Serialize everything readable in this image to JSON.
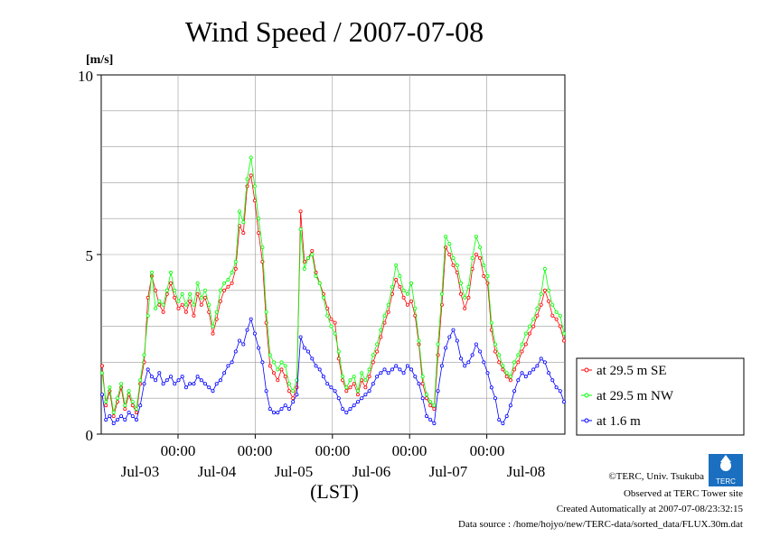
{
  "chart_data": {
    "type": "line",
    "title": "Wind Speed / 2007-07-08",
    "y_unit": "[m/s]",
    "xlabel": "(LST)",
    "ylim": [
      0,
      10
    ],
    "y_ticks": [
      "0",
      "5",
      "10"
    ],
    "x_hour_ticks": [
      "00:00",
      "00:00",
      "00:00",
      "00:00",
      "00:00"
    ],
    "x_day_ticks": [
      "Jul-03",
      "Jul-04",
      "Jul-05",
      "Jul-06",
      "Jul-07",
      "Jul-08"
    ],
    "grid": true,
    "legend_position": "right",
    "x_domain_days": [
      0,
      6
    ],
    "sample_step_days": 0.0833,
    "series": [
      {
        "name": "at 29.5 m SE",
        "color": "#ff0000",
        "values": [
          1.9,
          0.8,
          1.2,
          0.5,
          0.9,
          1.3,
          0.7,
          1.1,
          0.8,
          0.6,
          1.4,
          2.0,
          3.8,
          4.4,
          4.0,
          3.6,
          3.4,
          3.9,
          4.2,
          3.8,
          3.5,
          3.6,
          3.4,
          3.7,
          3.3,
          3.9,
          3.6,
          3.8,
          3.4,
          2.8,
          3.2,
          3.7,
          4.0,
          4.1,
          4.2,
          4.6,
          5.8,
          5.6,
          6.9,
          7.2,
          6.5,
          5.6,
          4.8,
          3.1,
          1.9,
          1.7,
          1.5,
          1.8,
          1.6,
          1.2,
          1.0,
          1.3,
          6.2,
          4.8,
          4.9,
          5.1,
          4.5,
          4.2,
          3.9,
          3.5,
          3.2,
          3.1,
          2.1,
          1.5,
          1.2,
          1.3,
          1.4,
          1.1,
          1.5,
          1.3,
          1.6,
          2.0,
          2.3,
          2.7,
          3.1,
          3.4,
          3.9,
          4.3,
          4.1,
          3.8,
          3.6,
          3.7,
          3.3,
          2.5,
          1.4,
          1.0,
          0.8,
          0.7,
          2.2,
          3.6,
          5.2,
          5.0,
          4.7,
          4.5,
          3.9,
          3.5,
          3.8,
          4.6,
          5.0,
          4.9,
          4.4,
          4.2,
          2.9,
          2.3,
          2.0,
          1.8,
          1.6,
          1.5,
          1.8,
          2.0,
          2.3,
          2.5,
          2.8,
          3.0,
          3.3,
          3.6,
          4.0,
          3.7,
          3.3,
          3.2,
          3.0,
          2.6
        ]
      },
      {
        "name": "at 29.5 m NW",
        "color": "#00ff00",
        "values": [
          1.7,
          0.9,
          1.3,
          0.6,
          1.0,
          1.4,
          0.8,
          1.2,
          0.9,
          0.7,
          1.5,
          2.2,
          3.3,
          4.5,
          3.5,
          3.7,
          3.6,
          4.0,
          4.5,
          4.0,
          3.7,
          3.9,
          3.6,
          3.9,
          3.6,
          4.2,
          3.8,
          4.0,
          3.6,
          3.0,
          3.4,
          4.0,
          4.2,
          4.3,
          4.5,
          4.8,
          6.2,
          5.9,
          7.1,
          7.7,
          6.9,
          6.0,
          5.2,
          3.4,
          2.2,
          2.0,
          1.8,
          2.0,
          1.9,
          1.4,
          1.2,
          1.5,
          5.7,
          4.6,
          4.9,
          5.0,
          4.4,
          4.2,
          3.8,
          3.3,
          3.0,
          2.8,
          2.3,
          1.6,
          1.3,
          1.5,
          1.6,
          1.2,
          1.7,
          1.5,
          1.8,
          2.2,
          2.5,
          2.9,
          3.3,
          3.6,
          4.1,
          4.7,
          4.4,
          4.0,
          3.9,
          4.2,
          3.5,
          2.6,
          1.6,
          1.1,
          0.9,
          0.8,
          2.5,
          3.9,
          5.5,
          5.3,
          4.9,
          4.7,
          4.2,
          3.8,
          4.1,
          4.9,
          5.5,
          5.2,
          4.7,
          4.4,
          3.1,
          2.5,
          2.2,
          1.9,
          1.7,
          1.6,
          2.0,
          2.2,
          2.5,
          2.8,
          3.0,
          3.2,
          3.5,
          3.9,
          4.6,
          4.0,
          3.6,
          3.4,
          3.3,
          2.8
        ]
      },
      {
        "name": "at 1.6 m",
        "color": "#0000ff",
        "values": [
          1.1,
          0.4,
          0.5,
          0.3,
          0.4,
          0.5,
          0.4,
          0.6,
          0.5,
          0.4,
          0.8,
          1.4,
          1.8,
          1.6,
          1.5,
          1.7,
          1.4,
          1.5,
          1.6,
          1.4,
          1.5,
          1.6,
          1.3,
          1.4,
          1.4,
          1.6,
          1.5,
          1.4,
          1.3,
          1.2,
          1.4,
          1.5,
          1.7,
          1.9,
          2.0,
          2.3,
          2.6,
          2.5,
          2.9,
          3.2,
          2.8,
          2.4,
          2.0,
          1.2,
          0.7,
          0.6,
          0.6,
          0.7,
          0.8,
          0.7,
          0.9,
          1.1,
          2.7,
          2.4,
          2.3,
          2.1,
          1.9,
          1.8,
          1.6,
          1.4,
          1.3,
          1.2,
          1.0,
          0.7,
          0.6,
          0.7,
          0.8,
          0.9,
          1.0,
          1.1,
          1.2,
          1.4,
          1.6,
          1.7,
          1.8,
          1.7,
          1.8,
          1.9,
          1.8,
          1.7,
          1.9,
          1.8,
          1.6,
          1.4,
          1.0,
          0.5,
          0.4,
          0.3,
          1.2,
          1.9,
          2.4,
          2.7,
          2.9,
          2.6,
          2.1,
          1.9,
          2.0,
          2.2,
          2.5,
          2.3,
          2.0,
          1.7,
          1.3,
          1.0,
          0.4,
          0.3,
          0.5,
          0.8,
          1.2,
          1.5,
          1.7,
          1.6,
          1.7,
          1.8,
          1.9,
          2.1,
          2.0,
          1.7,
          1.5,
          1.3,
          1.2,
          0.9
        ]
      }
    ]
  },
  "footer": {
    "credit": "©TERC, Univ. Tsukuba",
    "observed": "Observed at TERC Tower site",
    "created": "Created Automatically at 2007-07-08/23:32:15",
    "source": "Data source : /home/hojyo/new/TERC-data/sorted_data/FLUX.30m.dat"
  },
  "logo": {
    "text": "TERC"
  }
}
